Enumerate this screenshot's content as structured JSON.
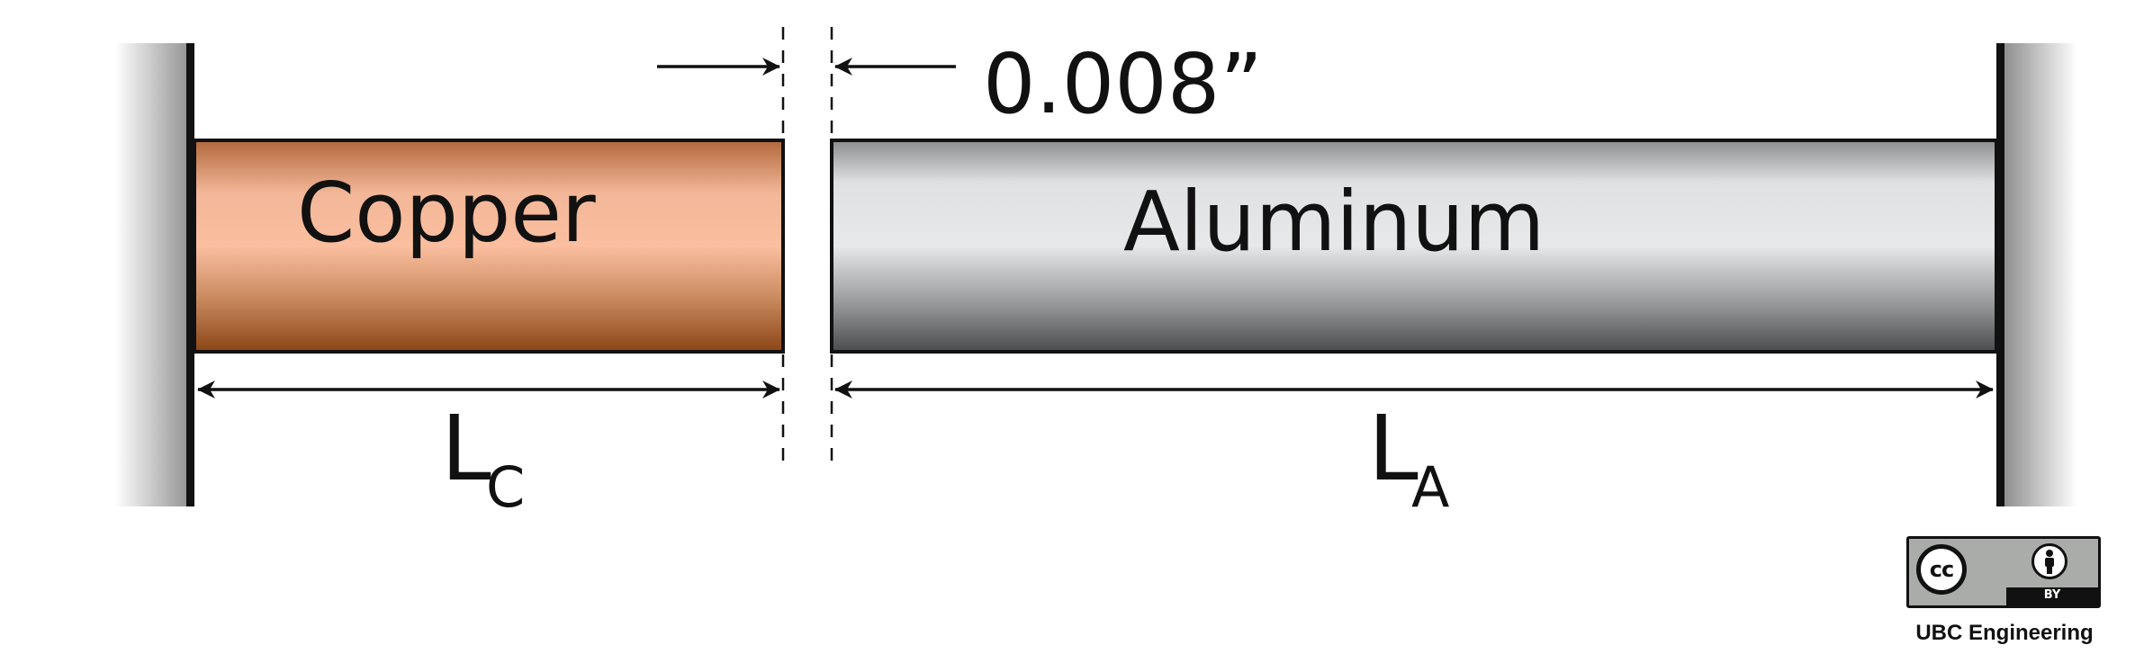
{
  "gap": {
    "label": "0.008”"
  },
  "rods": {
    "copper": {
      "label": "Copper",
      "color_light": "#f7c2a4",
      "color_dark": "#8b4a1e"
    },
    "aluminum": {
      "label": "Aluminum",
      "color_light": "#e3e5e6",
      "color_dark": "#505152"
    }
  },
  "dimensions": {
    "copper_length": {
      "symbol": "L",
      "subscript": "C"
    },
    "aluminum_length": {
      "symbol": "L",
      "subscript": "A"
    }
  },
  "license": {
    "badge_text": "BY",
    "cc_text": "cc"
  },
  "credit": "UBC Engineering"
}
